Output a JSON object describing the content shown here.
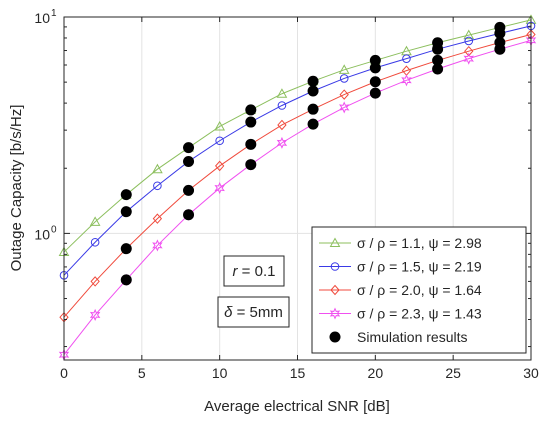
{
  "chart_data": {
    "type": "line",
    "xlabel": "Average electrical SNR [dB]",
    "ylabel": "Outage Capacity [b/s/Hz]",
    "xlim": [
      0,
      30
    ],
    "ylim": [
      0.26,
      10
    ],
    "yscale": "log",
    "x_ticks": [
      0,
      5,
      10,
      15,
      20,
      25,
      30
    ],
    "x_tick_labels": [
      "0",
      "5",
      "10",
      "15",
      "20",
      "25",
      "30"
    ],
    "y_ticks": [
      1,
      10
    ],
    "y_tick_labels": [
      {
        "base": "10",
        "exp": "0"
      },
      {
        "base": "10",
        "exp": "1"
      }
    ],
    "grid": true,
    "legend_position": "bottom-right",
    "series": [
      {
        "name": "σ / ρ = 1.1, ψ = 2.98",
        "color": "#8cbf5e",
        "marker": "triangle",
        "x": [
          0,
          2,
          4,
          6,
          8,
          10,
          12,
          14,
          16,
          18,
          20,
          22,
          24,
          26,
          28,
          30
        ],
        "values": [
          0.82,
          1.13,
          1.51,
          1.98,
          2.49,
          3.12,
          3.72,
          4.42,
          5.05,
          5.7,
          6.3,
          6.95,
          7.6,
          8.25,
          8.95,
          9.7
        ]
      },
      {
        "name": "σ / ρ = 1.5, ψ = 2.19",
        "color": "#3a3ae6",
        "marker": "circle",
        "x": [
          0,
          2,
          4,
          6,
          8,
          10,
          12,
          14,
          16,
          18,
          20,
          22,
          24,
          26,
          28,
          30
        ],
        "values": [
          0.64,
          0.91,
          1.26,
          1.66,
          2.15,
          2.68,
          3.27,
          3.9,
          4.55,
          5.2,
          5.82,
          6.42,
          7.1,
          7.75,
          8.4,
          9.1
        ]
      },
      {
        "name": "σ / ρ = 2.0, ψ = 1.64",
        "color": "#f04a3c",
        "marker": "diamond",
        "x": [
          0,
          2,
          4,
          6,
          8,
          10,
          12,
          14,
          16,
          18,
          20,
          22,
          24,
          26,
          28,
          30
        ],
        "values": [
          0.41,
          0.6,
          0.85,
          1.17,
          1.58,
          2.05,
          2.58,
          3.17,
          3.75,
          4.38,
          5.02,
          5.65,
          6.3,
          6.95,
          7.62,
          8.3
        ]
      },
      {
        "name": "σ / ρ = 2.3, ψ = 1.43",
        "color": "#f050f0",
        "marker": "star",
        "x": [
          0,
          2,
          4,
          6,
          8,
          10,
          12,
          14,
          16,
          18,
          20,
          22,
          24,
          26,
          28,
          30
        ],
        "values": [
          0.275,
          0.42,
          0.61,
          0.88,
          1.22,
          1.62,
          2.08,
          2.62,
          3.2,
          3.82,
          4.45,
          5.1,
          5.75,
          6.42,
          7.1,
          7.8
        ]
      },
      {
        "name": "Simulation results",
        "color": "#000000",
        "marker": "filled-circle",
        "points": [
          [
            4,
            1.51
          ],
          [
            4,
            1.26
          ],
          [
            4,
            0.85
          ],
          [
            4,
            0.61
          ],
          [
            8,
            2.49
          ],
          [
            8,
            2.15
          ],
          [
            8,
            1.58
          ],
          [
            8,
            1.22
          ],
          [
            12,
            3.72
          ],
          [
            12,
            3.27
          ],
          [
            12,
            2.58
          ],
          [
            12,
            2.08
          ],
          [
            16,
            5.05
          ],
          [
            16,
            4.55
          ],
          [
            16,
            3.75
          ],
          [
            16,
            3.2
          ],
          [
            20,
            6.3
          ],
          [
            20,
            5.82
          ],
          [
            20,
            5.02
          ],
          [
            20,
            4.45
          ],
          [
            24,
            7.6
          ],
          [
            24,
            7.1
          ],
          [
            24,
            6.3
          ],
          [
            24,
            5.75
          ],
          [
            28,
            8.95
          ],
          [
            28,
            8.4
          ],
          [
            28,
            7.62
          ],
          [
            28,
            7.1
          ]
        ]
      }
    ],
    "annotations": [
      {
        "italic": "r",
        "rest": " = 0.1"
      },
      {
        "italic": "δ",
        "rest": " = 5mm"
      }
    ]
  }
}
